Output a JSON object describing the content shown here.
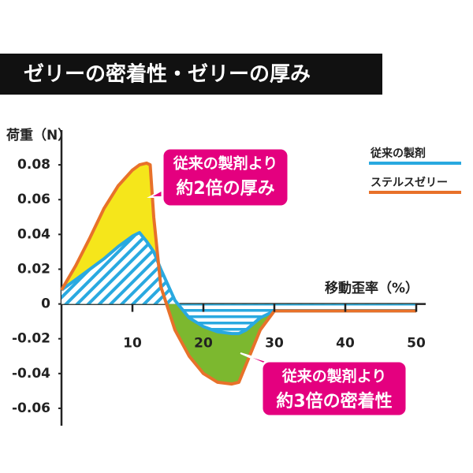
{
  "chart_data": {
    "type": "line",
    "title": "ゼリーの密着性・ゼリーの厚み",
    "y_label": "荷重（N）",
    "x_label": "移動歪率（%）",
    "x": [
      0,
      2,
      4,
      6,
      8,
      10,
      11,
      12,
      12.5,
      13,
      14,
      16,
      18,
      20,
      22,
      24,
      25,
      26,
      28,
      30,
      32,
      50
    ],
    "series": [
      {
        "name": "従来の製剤",
        "color": "#29a9e0",
        "values": [
          0.008,
          0.014,
          0.02,
          0.026,
          0.033,
          0.039,
          0.041,
          0.036,
          0.033,
          0.03,
          0.02,
          0.002,
          -0.008,
          -0.013,
          -0.016,
          -0.017,
          -0.017,
          -0.015,
          -0.008,
          -0.004,
          -0.004,
          -0.004
        ]
      },
      {
        "name": "ステルスゼリー",
        "color": "#e8712a",
        "values": [
          0.008,
          0.022,
          0.038,
          0.055,
          0.068,
          0.077,
          0.08,
          0.081,
          0.08,
          0.05,
          0.01,
          -0.015,
          -0.03,
          -0.04,
          -0.045,
          -0.046,
          -0.045,
          -0.035,
          -0.015,
          -0.004,
          -0.004,
          -0.004
        ]
      }
    ],
    "fill_above": "#f5e61b",
    "fill_below": "#7cb82f",
    "xlim": [
      0,
      50
    ],
    "xticks": [
      10,
      20,
      30,
      40,
      50
    ],
    "ylim": [
      -0.07,
      0.1
    ],
    "yticks": [
      0.08,
      0.06,
      0.04,
      0.02,
      0,
      -0.02,
      -0.04,
      -0.06
    ],
    "grid": false,
    "legend": "top-right",
    "annotations": [
      {
        "lines": [
          "従来の製剤より",
          "約2倍の厚み"
        ],
        "color": "#e4007f"
      },
      {
        "lines": [
          "従来の製剤より",
          "約3倍の密着性"
        ],
        "color": "#e4007f"
      }
    ]
  }
}
